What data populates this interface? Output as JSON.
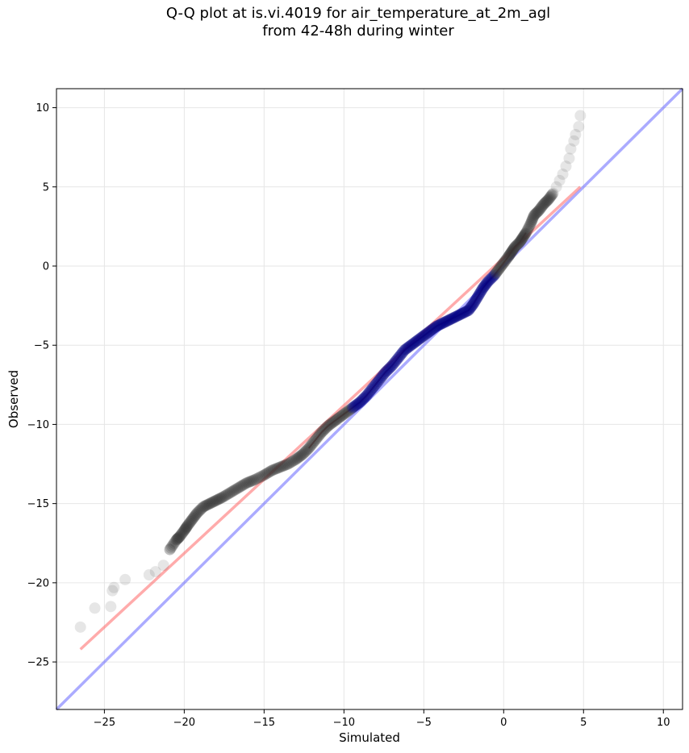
{
  "chart_data": {
    "type": "scatter",
    "title_line1": "Q-Q plot at is.vi.4019 for air_temperature_at_2m_agl",
    "title_line2": "from 42-48h during winter",
    "xlabel": "Simulated",
    "ylabel": "Observed",
    "xlim": [
      -28.0,
      11.2
    ],
    "ylim": [
      -28.0,
      11.2
    ],
    "xticks": [
      -25,
      -20,
      -15,
      -10,
      -5,
      0,
      5,
      10
    ],
    "yticks": [
      10,
      5,
      0,
      -5,
      -10,
      -15,
      -20,
      -25
    ],
    "tick_labels_x": [
      "−25",
      "−20",
      "−15",
      "−10",
      "−5",
      "0",
      "5",
      "10"
    ],
    "tick_labels_y": [
      "10",
      "5",
      "0",
      "−5",
      "−10",
      "−15",
      "−20",
      "−25"
    ],
    "grid": true,
    "colors": {
      "points": "#333333",
      "fit_line": "#ff6666",
      "identity_line": "#6666ff",
      "central_points": "#000080",
      "red_overlay": "#8b0000"
    },
    "fit_line": {
      "x": [
        -26.5,
        4.8
      ],
      "y": [
        -24.2,
        5.0
      ]
    },
    "identity_line": {
      "x": [
        -28.0,
        11.2
      ],
      "y": [
        -28.0,
        11.2
      ]
    },
    "quantile_points": [
      [
        -26.5,
        -22.8
      ],
      [
        -25.6,
        -21.6
      ],
      [
        -24.6,
        -21.5
      ],
      [
        -24.5,
        -20.5
      ],
      [
        -24.4,
        -20.3
      ],
      [
        -23.7,
        -19.8
      ],
      [
        -22.2,
        -19.5
      ],
      [
        -21.8,
        -19.3
      ],
      [
        -21.3,
        -18.9
      ],
      [
        -20.9,
        -17.9
      ],
      [
        -20.5,
        -17.3
      ],
      [
        -20.3,
        -17.1
      ],
      [
        -20.0,
        -16.7
      ],
      [
        -19.8,
        -16.4
      ],
      [
        -19.5,
        -16.0
      ],
      [
        -19.2,
        -15.6
      ],
      [
        -18.8,
        -15.2
      ],
      [
        -18.4,
        -15.0
      ],
      [
        -18.0,
        -14.8
      ],
      [
        -17.6,
        -14.6
      ],
      [
        -17.1,
        -14.3
      ],
      [
        -16.6,
        -14.0
      ],
      [
        -16.1,
        -13.7
      ],
      [
        -15.6,
        -13.5
      ],
      [
        -15.0,
        -13.2
      ],
      [
        -14.5,
        -12.9
      ],
      [
        -14.0,
        -12.7
      ],
      [
        -13.5,
        -12.5
      ],
      [
        -13.0,
        -12.2
      ],
      [
        -12.6,
        -11.9
      ],
      [
        -12.2,
        -11.5
      ],
      [
        -11.8,
        -11.0
      ],
      [
        -11.4,
        -10.5
      ],
      [
        -11.0,
        -10.1
      ],
      [
        -10.6,
        -9.8
      ],
      [
        -10.2,
        -9.5
      ],
      [
        -9.8,
        -9.2
      ],
      [
        -9.4,
        -8.9
      ],
      [
        -9.0,
        -8.6
      ],
      [
        -8.6,
        -8.2
      ],
      [
        -8.2,
        -7.7
      ],
      [
        -7.8,
        -7.2
      ],
      [
        -7.4,
        -6.7
      ],
      [
        -7.0,
        -6.3
      ],
      [
        -6.6,
        -5.8
      ],
      [
        -6.2,
        -5.3
      ],
      [
        -5.8,
        -5.0
      ],
      [
        -5.4,
        -4.7
      ],
      [
        -5.0,
        -4.4
      ],
      [
        -4.6,
        -4.1
      ],
      [
        -4.2,
        -3.8
      ],
      [
        -3.8,
        -3.6
      ],
      [
        -3.4,
        -3.4
      ],
      [
        -3.0,
        -3.2
      ],
      [
        -2.6,
        -3.0
      ],
      [
        -2.2,
        -2.8
      ],
      [
        -1.9,
        -2.4
      ],
      [
        -1.6,
        -1.9
      ],
      [
        -1.3,
        -1.4
      ],
      [
        -1.0,
        -1.0
      ],
      [
        -0.6,
        -0.6
      ],
      [
        -0.3,
        -0.2
      ],
      [
        0.0,
        0.2
      ],
      [
        0.3,
        0.6
      ],
      [
        0.5,
        0.9
      ],
      [
        0.7,
        1.2
      ],
      [
        1.0,
        1.5
      ],
      [
        1.2,
        1.8
      ],
      [
        1.4,
        2.1
      ],
      [
        1.7,
        2.7
      ],
      [
        1.9,
        3.2
      ],
      [
        2.2,
        3.5
      ],
      [
        2.5,
        3.9
      ],
      [
        2.8,
        4.2
      ],
      [
        3.1,
        4.6
      ],
      [
        3.3,
        5.0
      ],
      [
        3.5,
        5.4
      ],
      [
        3.7,
        5.8
      ],
      [
        3.9,
        6.3
      ],
      [
        4.1,
        6.8
      ],
      [
        4.2,
        7.4
      ],
      [
        4.4,
        7.9
      ],
      [
        4.5,
        8.3
      ],
      [
        4.7,
        8.8
      ],
      [
        4.8,
        9.5
      ]
    ]
  }
}
